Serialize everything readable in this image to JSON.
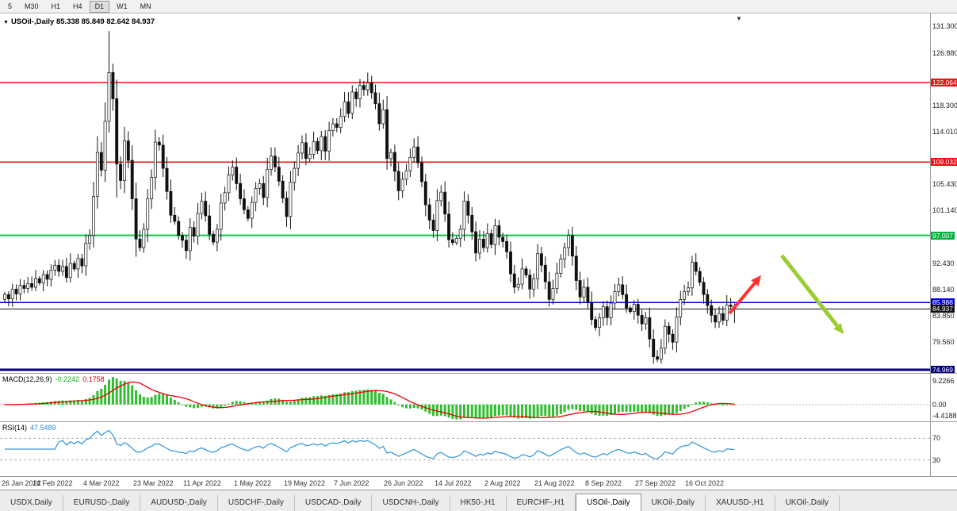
{
  "toolbar": {
    "timeframes": [
      {
        "label": "5",
        "active": false
      },
      {
        "label": "M30",
        "active": false
      },
      {
        "label": "H1",
        "active": false
      },
      {
        "label": "H4",
        "active": false
      },
      {
        "label": "D1",
        "active": true
      },
      {
        "label": "W1",
        "active": false
      },
      {
        "label": "MN",
        "active": false
      }
    ]
  },
  "icons": {
    "chart_menu": "▼",
    "shift_marker": "▼"
  },
  "chart": {
    "symbol_label": "USOil-,Daily",
    "ohlc_readout": "85.338 85.849 82.642 84.937",
    "price_axis": {
      "plain_labels": [
        "131.300",
        "126.880",
        "118.300",
        "114.010",
        "105.430",
        "101.140",
        "92.430",
        "88.140",
        "83.850",
        "79.560"
      ],
      "plain_prices": [
        131.3,
        126.88,
        118.3,
        114.01,
        105.43,
        101.14,
        92.43,
        88.14,
        83.85,
        79.56
      ],
      "level_chips": [
        {
          "label": "122.064",
          "price": 122.064,
          "bg": "#ee1111",
          "fg": "#ffffff"
        },
        {
          "label": "109.032",
          "price": 109.032,
          "bg": "#ee1111",
          "fg": "#ffffff"
        },
        {
          "label": "97.007",
          "price": 97.007,
          "bg": "#00b33c",
          "fg": "#ffffff"
        },
        {
          "label": "85.988",
          "price": 85.988,
          "bg": "#0000dd",
          "fg": "#ffffff"
        },
        {
          "label": "84.937",
          "price": 84.937,
          "bg": "#111111",
          "fg": "#ffffff"
        },
        {
          "label": "74.969",
          "price": 74.969,
          "bg": "#000080",
          "fg": "#ffffff"
        }
      ]
    }
  },
  "chart_data": {
    "type": "candlestick",
    "symbol": "USOil-",
    "timeframe": "Daily",
    "price_range": [
      74.45,
      133.38
    ],
    "x_labels": [
      "26 Jan 2022",
      "14 Feb 2022",
      "4 Mar 2022",
      "23 Mar 2022",
      "11 Apr 2022",
      "1 May 2022",
      "19 May 2022",
      "7 Jun 2022",
      "26 Jun 2022",
      "14 Jul 2022",
      "2 Aug 2022",
      "21 Aug 2022",
      "8 Sep 2022",
      "27 Sep 2022",
      "16 Oct 2022"
    ],
    "x_label_indices": [
      0,
      13,
      26,
      39,
      52,
      65,
      78,
      91,
      104,
      117,
      130,
      143,
      156,
      169,
      182
    ],
    "first_open": 86.5,
    "closes": [
      87.3,
      86.6,
      88.2,
      87.4,
      88.8,
      88.3,
      89.1,
      88.5,
      89.9,
      89.2,
      90.6,
      89.8,
      91.3,
      92.1,
      91.1,
      91.9,
      90.1,
      92.4,
      91.5,
      93.2,
      92.0,
      95.7,
      97.0,
      103.4,
      110.6,
      107.7,
      115.7,
      123.7,
      119.4,
      108.7,
      106.0,
      112.5,
      109.3,
      103.0,
      96.4,
      95.0,
      98.0,
      103.0,
      106.5,
      112.3,
      111.8,
      108.0,
      104.2,
      100.3,
      99.3,
      97.0,
      96.2,
      94.5,
      98.3,
      96.9,
      100.6,
      102.6,
      100.2,
      97.2,
      95.9,
      98.0,
      102.3,
      104.0,
      106.9,
      108.2,
      105.5,
      103.0,
      101.2,
      99.8,
      102.4,
      104.7,
      105.5,
      103.2,
      107.8,
      110.0,
      108.2,
      105.9,
      103.1,
      100.1,
      105.7,
      108.0,
      110.5,
      112.2,
      109.6,
      110.3,
      112.4,
      110.9,
      113.2,
      110.8,
      114.2,
      115.3,
      114.7,
      116.5,
      118.9,
      117.0,
      120.5,
      119.4,
      121.6,
      120.9,
      122.0,
      120.4,
      118.6,
      115.3,
      117.6,
      109.6,
      110.6,
      107.5,
      104.3,
      106.2,
      107.6,
      109.8,
      111.5,
      108.9,
      105.8,
      102.0,
      99.5,
      97.8,
      102.7,
      104.1,
      100.5,
      96.3,
      95.8,
      96.5,
      98.0,
      102.6,
      100.3,
      97.6,
      94.1,
      96.4,
      95.0,
      97.3,
      95.5,
      98.6,
      96.7,
      96.0,
      94.3,
      90.7,
      88.5,
      89.0,
      91.5,
      90.5,
      88.2,
      89.9,
      94.0,
      92.1,
      89.4,
      86.5,
      88.3,
      90.8,
      93.1,
      95.0,
      97.0,
      93.6,
      89.6,
      86.9,
      88.5,
      86.0,
      83.2,
      81.9,
      83.5,
      85.3,
      83.5,
      85.9,
      87.8,
      88.9,
      87.3,
      85.1,
      84.5,
      85.7,
      83.9,
      82.5,
      83.5,
      80.0,
      77.1,
      76.7,
      78.5,
      82.1,
      80.8,
      79.5,
      83.6,
      86.5,
      87.8,
      88.4,
      92.6,
      91.1,
      89.3,
      87.3,
      85.5,
      83.9,
      82.8,
      84.2,
      83.1,
      85.6,
      85.338,
      84.937
    ],
    "wick_overrides": {
      "27": {
        "h": 130.5
      },
      "29": {
        "l": 103.2
      },
      "34": {
        "l": 93.5
      },
      "94": {
        "h": 123.68
      },
      "169": {
        "l": 76.25
      },
      "178": {
        "h": 93.64
      },
      "189": {
        "h": 85.849,
        "l": 82.642
      }
    },
    "last_candle": {
      "open": 85.338,
      "high": 85.849,
      "low": 82.642,
      "close": 84.937
    },
    "levels": [
      {
        "name": "resistance-line-upper",
        "price": 122.064,
        "color": "#ee1111",
        "width": 1.5
      },
      {
        "name": "resistance-line-lower",
        "price": 109.032,
        "color": "#ee1111",
        "width": 1.5
      },
      {
        "name": "support-line-green",
        "price": 97.007,
        "color": "#00cc44",
        "width": 2
      },
      {
        "name": "level-line-blue",
        "price": 85.988,
        "color": "#0000ee",
        "width": 1.5
      },
      {
        "name": "current-price-line",
        "price": 84.937,
        "color": "#111111",
        "width": 1
      },
      {
        "name": "support-line-navy",
        "price": 74.969,
        "color": "#000080",
        "width": 3
      }
    ],
    "annotations": [
      {
        "name": "bullish-arrow",
        "color": "#ff3030",
        "width": 4,
        "from": [
          920,
          378
        ],
        "to": [
          960,
          330
        ]
      },
      {
        "name": "bearish-arrow",
        "color": "#9ACD32",
        "width": 5,
        "from": [
          986,
          305
        ],
        "to": [
          1064,
          404
        ]
      }
    ]
  },
  "macd": {
    "label": "MACD(12,26,9)",
    "main_value": "-0.2242",
    "signal_value": "0.1758",
    "axis_top": "9.2266",
    "axis_zero": "0.00",
    "axis_bottom": "-4.4188",
    "params": [
      12,
      26,
      9
    ]
  },
  "rsi": {
    "label": "RSI(14)",
    "value": "47.5489",
    "upper": "70",
    "lower": "30",
    "period": 14
  },
  "tabs": [
    {
      "label": "USDX,Daily",
      "active": false
    },
    {
      "label": "EURUSD-,Daily",
      "active": false
    },
    {
      "label": "AUDUSD-,Daily",
      "active": false
    },
    {
      "label": "USDCHF-,Daily",
      "active": false
    },
    {
      "label": "USDCAD-,Daily",
      "active": false
    },
    {
      "label": "USDCNH-,Daily",
      "active": false
    },
    {
      "label": "HK50-,H1",
      "active": false
    },
    {
      "label": "EURCHF-,H1",
      "active": false
    },
    {
      "label": "USOil-,Daily",
      "active": true
    },
    {
      "label": "UKOil-,Daily",
      "active": false
    },
    {
      "label": "XAUUSD-,H1",
      "active": false
    },
    {
      "label": "UKOil-,Daily",
      "active": false
    }
  ],
  "colors": {
    "bull": "#ffffff",
    "bear": "#111111",
    "wick": "#111111",
    "macd_hist": "#2fbf2f",
    "macd_signal": "#ee0000",
    "rsi_line": "#3b9bdf",
    "rsi_level": "#adadad"
  }
}
